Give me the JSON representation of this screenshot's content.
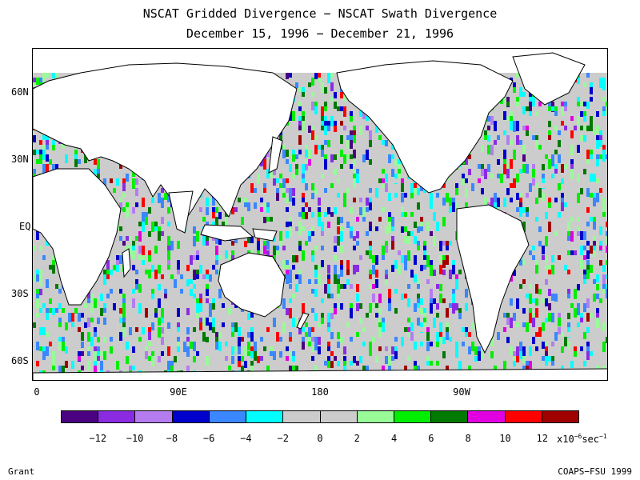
{
  "title_line1": "NSCAT Gridded Divergence − NSCAT Swath Divergence",
  "title_line2": "December 15, 1996 − December 21, 1996",
  "lat_labels": [
    "60N",
    "30N",
    "EQ",
    "30S",
    "60S"
  ],
  "lon_labels": [
    "0",
    "90E",
    "180",
    "90W"
  ],
  "colorbar": {
    "colors": [
      "#4b0082",
      "#8a2be2",
      "#b57cf0",
      "#0000cd",
      "#3a87ff",
      "#00ffff",
      "#cccccc",
      "#cccccc",
      "#98fb98",
      "#00ee00",
      "#007a00",
      "#e000e0",
      "#ff0000",
      "#a00000"
    ],
    "tick_labels": [
      "−12",
      "−10",
      "−8",
      "−6",
      "−4",
      "−2",
      "0",
      "2",
      "4",
      "6",
      "8",
      "10",
      "12"
    ],
    "unit_prefix": "x10",
    "unit_exp1": "−6",
    "unit_mid": "sec",
    "unit_exp2": "−1"
  },
  "footer_left": "Grant",
  "footer_right": "COAPS−FSU 1999"
}
